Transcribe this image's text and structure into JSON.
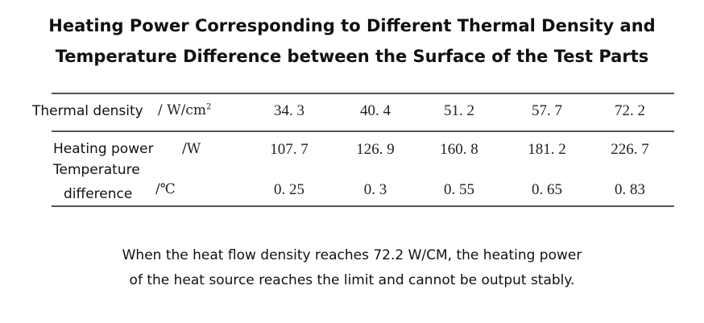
{
  "title_line1": "Heating Power Corresponding to Different Thermal Density and",
  "title_line2": "Temperature Difference between the Surface of the Test Parts",
  "table": {
    "rows": [
      {
        "label": "Thermal density",
        "unit": "/ W/cm",
        "unit_sup": "2",
        "values": [
          "34. 3",
          "40. 4",
          "51. 2",
          "57. 7",
          "72. 2"
        ]
      },
      {
        "label": "Heating power",
        "unit": "/W",
        "values": [
          "107. 7",
          "126. 9",
          "160. 8",
          "181. 2",
          "226. 7"
        ]
      },
      {
        "label_line1": "Temperature",
        "label_line2": "difference",
        "unit": "/℃",
        "values": [
          "0. 25",
          "0. 3",
          "0. 55",
          "0. 65",
          "0. 83"
        ]
      }
    ]
  },
  "note_line1": "When the heat flow density reaches 72.2 W/CM, the heating power",
  "note_line2": "of the heat source reaches the limit and cannot be output stably."
}
